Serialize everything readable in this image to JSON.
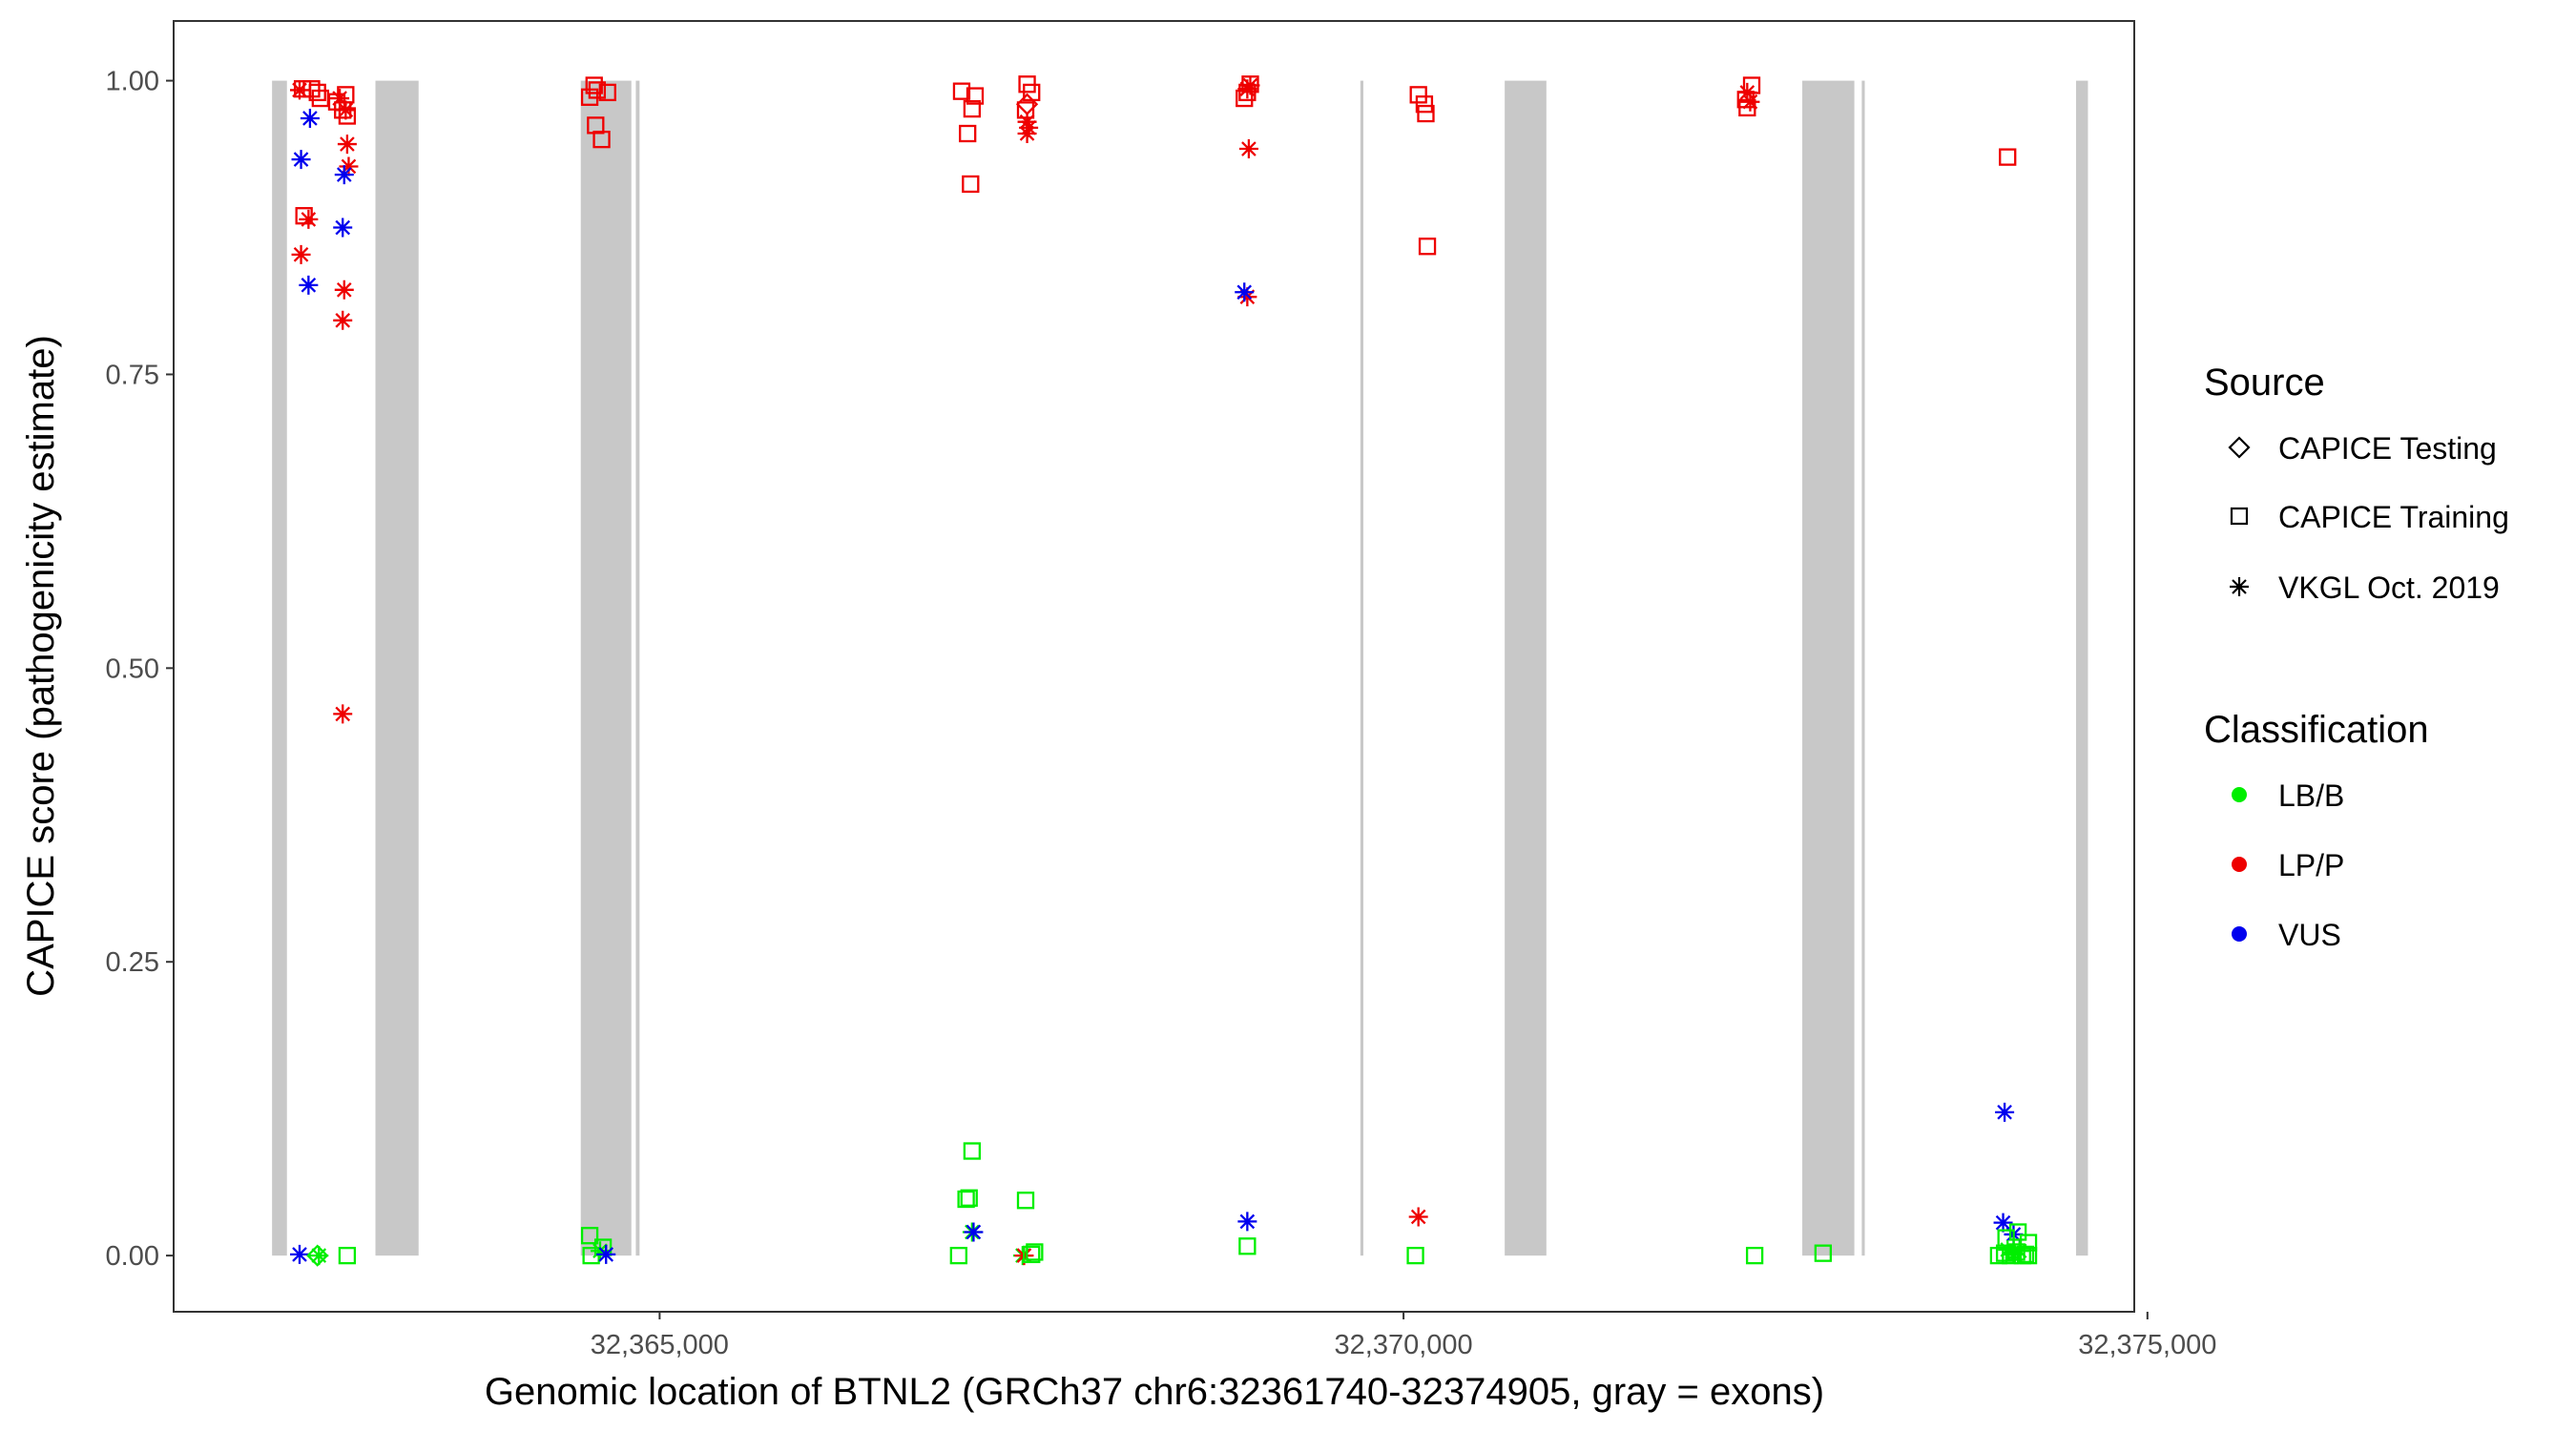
{
  "chart_data": {
    "type": "scatter",
    "title": "",
    "xlabel": "Genomic location of BTNL2 (GRCh37 chr6:32361740-32374905, gray = exons)",
    "ylabel": "CAPICE score (pathogenicity estimate)",
    "xlim": [
      32361740,
      32374905
    ],
    "ylim": [
      -0.047,
      1.05
    ],
    "x_ticks": [
      32365000,
      32370000,
      32375000
    ],
    "x_tick_labels": [
      "32,365,000",
      "32,370,000",
      "32,375,000"
    ],
    "y_ticks": [
      0,
      0.25,
      0.5,
      0.75,
      1
    ],
    "y_tick_labels": [
      "0.00",
      "0.25",
      "0.50",
      "0.75",
      "1.00"
    ],
    "grid": false,
    "exons": [
      [
        32362395,
        32362495
      ],
      [
        32363090,
        32363380
      ],
      [
        32364470,
        32364810
      ],
      [
        32364840,
        32364865
      ],
      [
        32369710,
        32369730
      ],
      [
        32370680,
        32370960
      ],
      [
        32372680,
        32373030
      ],
      [
        32373080,
        32373100
      ],
      [
        32374520,
        32374600
      ]
    ],
    "legend": {
      "placement": "right",
      "source_title": "Source",
      "classification_title": "Classification",
      "source_items": [
        {
          "label": "CAPICE Testing",
          "shape": "diamond"
        },
        {
          "label": "CAPICE Training",
          "shape": "square"
        },
        {
          "label": "VKGL Oct. 2019",
          "shape": "asterisk"
        }
      ],
      "classification_items": [
        {
          "label": "LB/B",
          "color": "#00ee00"
        },
        {
          "label": "LP/P",
          "color": "#ee0000"
        },
        {
          "label": "VUS",
          "color": "#0000ee"
        }
      ]
    },
    "colors": {
      "LB/B": "#00ee00",
      "LP/P": "#ee0000",
      "VUS": "#0000ee"
    },
    "points": [
      {
        "x": 32362600,
        "y": 0.993,
        "source": "training",
        "cls": "LP/P"
      },
      {
        "x": 32362660,
        "y": 0.993,
        "source": "training",
        "cls": "LP/P"
      },
      {
        "x": 32362700,
        "y": 0.99,
        "source": "training",
        "cls": "LP/P"
      },
      {
        "x": 32362720,
        "y": 0.985,
        "source": "training",
        "cls": "LP/P"
      },
      {
        "x": 32362830,
        "y": 0.982,
        "source": "training",
        "cls": "LP/P"
      },
      {
        "x": 32362890,
        "y": 0.988,
        "source": "training",
        "cls": "LP/P"
      },
      {
        "x": 32362870,
        "y": 0.975,
        "source": "training",
        "cls": "LP/P"
      },
      {
        "x": 32362900,
        "y": 0.97,
        "source": "training",
        "cls": "LP/P"
      },
      {
        "x": 32362610,
        "y": 0.885,
        "source": "training",
        "cls": "LP/P"
      },
      {
        "x": 32362580,
        "y": 0.992,
        "source": "vkgl",
        "cls": "LP/P"
      },
      {
        "x": 32362850,
        "y": 0.985,
        "source": "vkgl",
        "cls": "LP/P"
      },
      {
        "x": 32362890,
        "y": 0.975,
        "source": "vkgl",
        "cls": "LP/P"
      },
      {
        "x": 32362900,
        "y": 0.946,
        "source": "vkgl",
        "cls": "LP/P"
      },
      {
        "x": 32362910,
        "y": 0.927,
        "source": "vkgl",
        "cls": "LP/P"
      },
      {
        "x": 32362640,
        "y": 0.882,
        "source": "vkgl",
        "cls": "LP/P"
      },
      {
        "x": 32362590,
        "y": 0.852,
        "source": "vkgl",
        "cls": "LP/P"
      },
      {
        "x": 32362880,
        "y": 0.822,
        "source": "vkgl",
        "cls": "LP/P"
      },
      {
        "x": 32362870,
        "y": 0.796,
        "source": "vkgl",
        "cls": "LP/P"
      },
      {
        "x": 32362870,
        "y": 0.461,
        "source": "vkgl",
        "cls": "LP/P"
      },
      {
        "x": 32362650,
        "y": 0.968,
        "source": "vkgl",
        "cls": "VUS"
      },
      {
        "x": 32362590,
        "y": 0.933,
        "source": "vkgl",
        "cls": "VUS"
      },
      {
        "x": 32362880,
        "y": 0.92,
        "source": "vkgl",
        "cls": "VUS"
      },
      {
        "x": 32362870,
        "y": 0.875,
        "source": "vkgl",
        "cls": "VUS"
      },
      {
        "x": 32362640,
        "y": 0.826,
        "source": "vkgl",
        "cls": "VUS"
      },
      {
        "x": 32362580,
        "y": 0.001,
        "source": "vkgl",
        "cls": "VUS"
      },
      {
        "x": 32362700,
        "y": 0.0,
        "source": "testing",
        "cls": "LB/B"
      },
      {
        "x": 32362710,
        "y": 0.0,
        "source": "vkgl",
        "cls": "LB/B"
      },
      {
        "x": 32362900,
        "y": 0.0,
        "source": "training",
        "cls": "LB/B"
      },
      {
        "x": 32364560,
        "y": 0.996,
        "source": "training",
        "cls": "LP/P"
      },
      {
        "x": 32364580,
        "y": 0.992,
        "source": "training",
        "cls": "LP/P"
      },
      {
        "x": 32364650,
        "y": 0.99,
        "source": "training",
        "cls": "LP/P"
      },
      {
        "x": 32364530,
        "y": 0.986,
        "source": "training",
        "cls": "LP/P"
      },
      {
        "x": 32364570,
        "y": 0.962,
        "source": "training",
        "cls": "LP/P"
      },
      {
        "x": 32364610,
        "y": 0.95,
        "source": "training",
        "cls": "LP/P"
      },
      {
        "x": 32364530,
        "y": 0.017,
        "source": "training",
        "cls": "LB/B"
      },
      {
        "x": 32364620,
        "y": 0.007,
        "source": "training",
        "cls": "LB/B"
      },
      {
        "x": 32364540,
        "y": 0.0,
        "source": "training",
        "cls": "LB/B"
      },
      {
        "x": 32364600,
        "y": 0.004,
        "source": "vkgl",
        "cls": "LB/B"
      },
      {
        "x": 32364640,
        "y": 0.001,
        "source": "vkgl",
        "cls": "VUS"
      },
      {
        "x": 32367030,
        "y": 0.991,
        "source": "training",
        "cls": "LP/P"
      },
      {
        "x": 32367120,
        "y": 0.987,
        "source": "training",
        "cls": "LP/P"
      },
      {
        "x": 32367100,
        "y": 0.976,
        "source": "training",
        "cls": "LP/P"
      },
      {
        "x": 32367070,
        "y": 0.955,
        "source": "training",
        "cls": "LP/P"
      },
      {
        "x": 32367090,
        "y": 0.912,
        "source": "training",
        "cls": "LP/P"
      },
      {
        "x": 32367470,
        "y": 0.997,
        "source": "training",
        "cls": "LP/P"
      },
      {
        "x": 32367500,
        "y": 0.99,
        "source": "training",
        "cls": "LP/P"
      },
      {
        "x": 32367460,
        "y": 0.975,
        "source": "training",
        "cls": "LP/P"
      },
      {
        "x": 32367470,
        "y": 0.98,
        "source": "testing",
        "cls": "LP/P"
      },
      {
        "x": 32367470,
        "y": 0.965,
        "source": "vkgl",
        "cls": "LP/P"
      },
      {
        "x": 32367480,
        "y": 0.96,
        "source": "vkgl",
        "cls": "LP/P"
      },
      {
        "x": 32367470,
        "y": 0.955,
        "source": "vkgl",
        "cls": "LP/P"
      },
      {
        "x": 32367100,
        "y": 0.089,
        "source": "training",
        "cls": "LB/B"
      },
      {
        "x": 32367080,
        "y": 0.049,
        "source": "training",
        "cls": "LB/B"
      },
      {
        "x": 32367060,
        "y": 0.048,
        "source": "training",
        "cls": "LB/B"
      },
      {
        "x": 32367460,
        "y": 0.047,
        "source": "training",
        "cls": "LB/B"
      },
      {
        "x": 32367010,
        "y": 0.0,
        "source": "training",
        "cls": "LB/B"
      },
      {
        "x": 32367100,
        "y": 0.02,
        "source": "vkgl",
        "cls": "LB/B"
      },
      {
        "x": 32367110,
        "y": 0.02,
        "source": "vkgl",
        "cls": "VUS"
      },
      {
        "x": 32367440,
        "y": 0.0,
        "source": "vkgl",
        "cls": "LB/B"
      },
      {
        "x": 32367450,
        "y": 0.0,
        "source": "vkgl",
        "cls": "LP/P"
      },
      {
        "x": 32367520,
        "y": 0.003,
        "source": "training",
        "cls": "LB/B"
      },
      {
        "x": 32367500,
        "y": 0.001,
        "source": "training",
        "cls": "LB/B"
      },
      {
        "x": 32368970,
        "y": 0.997,
        "source": "training",
        "cls": "LP/P"
      },
      {
        "x": 32368950,
        "y": 0.99,
        "source": "training",
        "cls": "LP/P"
      },
      {
        "x": 32368930,
        "y": 0.985,
        "source": "training",
        "cls": "LP/P"
      },
      {
        "x": 32368970,
        "y": 0.996,
        "source": "vkgl",
        "cls": "LP/P"
      },
      {
        "x": 32368950,
        "y": 0.993,
        "source": "vkgl",
        "cls": "LP/P"
      },
      {
        "x": 32368960,
        "y": 0.942,
        "source": "vkgl",
        "cls": "LP/P"
      },
      {
        "x": 32368950,
        "y": 0.816,
        "source": "vkgl",
        "cls": "LP/P"
      },
      {
        "x": 32368930,
        "y": 0.82,
        "source": "vkgl",
        "cls": "VUS"
      },
      {
        "x": 32368950,
        "y": 0.029,
        "source": "vkgl",
        "cls": "VUS"
      },
      {
        "x": 32368950,
        "y": 0.008,
        "source": "training",
        "cls": "LB/B"
      },
      {
        "x": 32370100,
        "y": 0.988,
        "source": "training",
        "cls": "LP/P"
      },
      {
        "x": 32370140,
        "y": 0.98,
        "source": "training",
        "cls": "LP/P"
      },
      {
        "x": 32370150,
        "y": 0.972,
        "source": "training",
        "cls": "LP/P"
      },
      {
        "x": 32370160,
        "y": 0.859,
        "source": "training",
        "cls": "LP/P"
      },
      {
        "x": 32370100,
        "y": 0.033,
        "source": "vkgl",
        "cls": "LP/P"
      },
      {
        "x": 32370080,
        "y": 0.0,
        "source": "training",
        "cls": "LB/B"
      },
      {
        "x": 32372340,
        "y": 0.996,
        "source": "training",
        "cls": "LP/P"
      },
      {
        "x": 32372300,
        "y": 0.984,
        "source": "training",
        "cls": "LP/P"
      },
      {
        "x": 32372310,
        "y": 0.977,
        "source": "training",
        "cls": "LP/P"
      },
      {
        "x": 32372310,
        "y": 0.99,
        "source": "vkgl",
        "cls": "LP/P"
      },
      {
        "x": 32372330,
        "y": 0.982,
        "source": "vkgl",
        "cls": "LP/P"
      },
      {
        "x": 32372360,
        "y": 0.0,
        "source": "training",
        "cls": "LB/B"
      },
      {
        "x": 32372820,
        "y": 0.002,
        "source": "training",
        "cls": "LB/B"
      },
      {
        "x": 32374060,
        "y": 0.935,
        "source": "training",
        "cls": "LP/P"
      },
      {
        "x": 32374040,
        "y": 0.122,
        "source": "vkgl",
        "cls": "VUS"
      },
      {
        "x": 32374030,
        "y": 0.028,
        "source": "vkgl",
        "cls": "VUS"
      },
      {
        "x": 32374100,
        "y": 0.018,
        "source": "vkgl",
        "cls": "VUS"
      },
      {
        "x": 32374050,
        "y": 0.015,
        "source": "training",
        "cls": "LB/B"
      },
      {
        "x": 32374130,
        "y": 0.02,
        "source": "training",
        "cls": "LB/B"
      },
      {
        "x": 32374200,
        "y": 0.011,
        "source": "training",
        "cls": "LB/B"
      },
      {
        "x": 32374000,
        "y": 0.0,
        "source": "training",
        "cls": "LB/B"
      },
      {
        "x": 32374040,
        "y": 0.002,
        "source": "training",
        "cls": "LB/B"
      },
      {
        "x": 32374080,
        "y": 0.0,
        "source": "training",
        "cls": "LB/B"
      },
      {
        "x": 32374120,
        "y": 0.003,
        "source": "training",
        "cls": "LB/B"
      },
      {
        "x": 32374160,
        "y": 0.0,
        "source": "training",
        "cls": "LB/B"
      },
      {
        "x": 32374180,
        "y": 0.001,
        "source": "training",
        "cls": "LB/B"
      },
      {
        "x": 32374200,
        "y": 0.0,
        "source": "training",
        "cls": "LB/B"
      },
      {
        "x": 32374060,
        "y": 0.005,
        "source": "vkgl",
        "cls": "LB/B"
      },
      {
        "x": 32374140,
        "y": 0.004,
        "source": "vkgl",
        "cls": "LB/B"
      },
      {
        "x": 32374100,
        "y": 0.001,
        "source": "vkgl",
        "cls": "LB/B"
      }
    ]
  }
}
